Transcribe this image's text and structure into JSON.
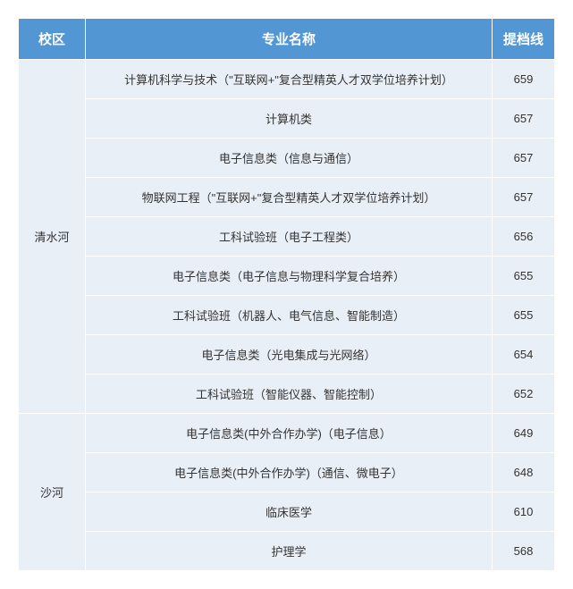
{
  "header": {
    "campus": "校区",
    "major": "专业名称",
    "score": "提档线"
  },
  "colors": {
    "header_bg": "#5396d4",
    "header_text": "#ffffff",
    "cell_bg": "#e8eff7",
    "cell_text": "#333333",
    "border": "#ffffff"
  },
  "typography": {
    "header_fontsize": 15,
    "cell_fontsize": 13,
    "font_family": "Microsoft YaHei"
  },
  "column_widths": {
    "campus": 75,
    "major": 456,
    "score": 70
  },
  "groups": [
    {
      "campus": "清水河",
      "rows": [
        {
          "major": "计算机科学与技术（\"互联网+\"复合型精英人才双学位培养计划）",
          "score": "659"
        },
        {
          "major": "计算机类",
          "score": "657"
        },
        {
          "major": "电子信息类（信息与通信）",
          "score": "657"
        },
        {
          "major": "物联网工程（\"互联网+\"复合型精英人才双学位培养计划）",
          "score": "657"
        },
        {
          "major": "工科试验班（电子工程类）",
          "score": "656"
        },
        {
          "major": "电子信息类（电子信息与物理科学复合培养）",
          "score": "655"
        },
        {
          "major": "工科试验班（机器人、电气信息、智能制造）",
          "score": "655"
        },
        {
          "major": "电子信息类（光电集成与光网络）",
          "score": "654"
        },
        {
          "major": "工科试验班（智能仪器、智能控制）",
          "score": "652"
        }
      ]
    },
    {
      "campus": "沙河",
      "rows": [
        {
          "major": "电子信息类(中外合作办学)（电子信息）",
          "score": "649"
        },
        {
          "major": "电子信息类(中外合作办学)（通信、微电子）",
          "score": "648"
        },
        {
          "major": "临床医学",
          "score": "610"
        },
        {
          "major": "护理学",
          "score": "568"
        }
      ]
    }
  ]
}
